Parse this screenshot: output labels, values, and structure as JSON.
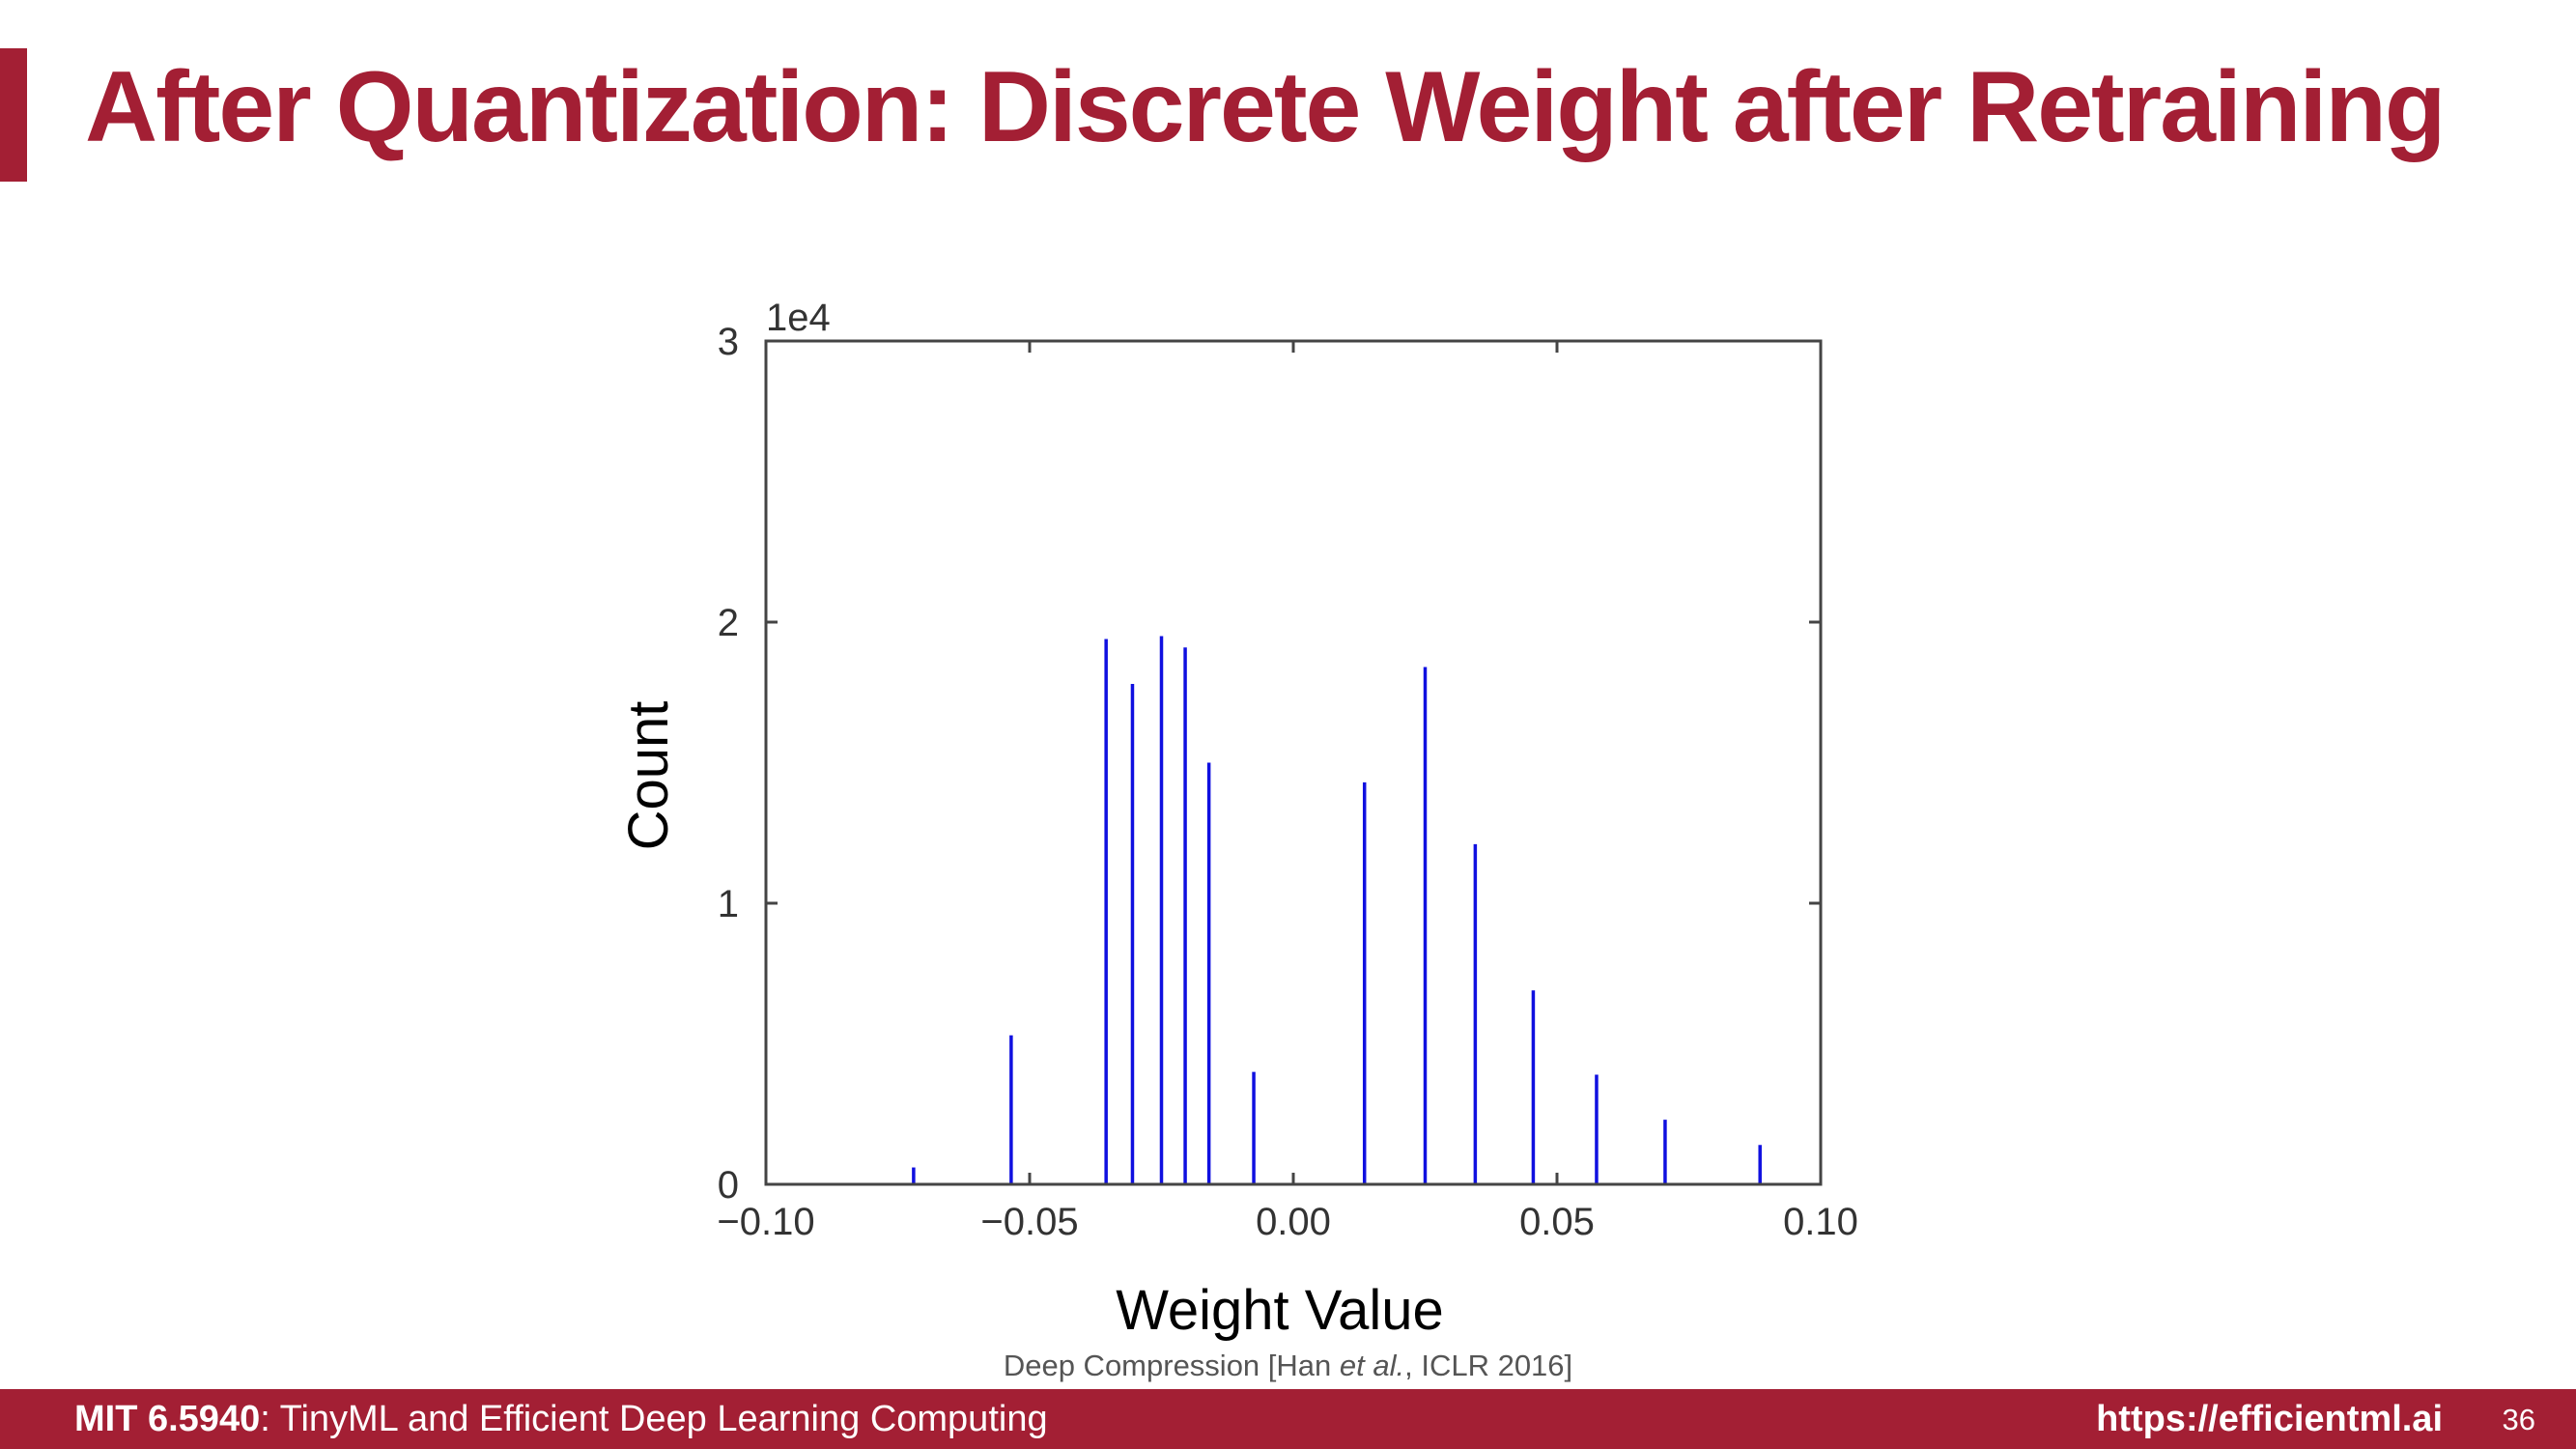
{
  "slide": {
    "title": "After Quantization: Discrete Weight after Retraining",
    "accent_color": "#a31f34",
    "page_number": "36"
  },
  "citation": {
    "prefix": "Deep Compression [Han ",
    "italic": "et al.",
    "suffix": ", ICLR 2016]"
  },
  "footer": {
    "course_code": "MIT 6.5940",
    "course_name": ": TinyML and Efficient Deep Learning Computing",
    "url": "https://efficientml.ai"
  },
  "chart_data": {
    "type": "bar",
    "xlabel": "Weight Value",
    "ylabel": "Count",
    "y_scale_label": "1e4",
    "xlim": [
      -0.1,
      0.1
    ],
    "ylim": [
      0,
      30000
    ],
    "x_ticks": [
      -0.1,
      -0.05,
      0.0,
      0.05,
      0.1
    ],
    "x_tick_labels": [
      "−0.10",
      "−0.05",
      "0.00",
      "0.05",
      "0.10"
    ],
    "y_ticks": [
      0,
      10000,
      20000,
      30000
    ],
    "y_tick_labels": [
      "0",
      "1",
      "2",
      "3"
    ],
    "bar_color": "#1010e0",
    "grid": false,
    "points": [
      {
        "x": -0.072,
        "y": 600
      },
      {
        "x": -0.0535,
        "y": 5300
      },
      {
        "x": -0.0355,
        "y": 19400
      },
      {
        "x": -0.0305,
        "y": 17800
      },
      {
        "x": -0.025,
        "y": 19500
      },
      {
        "x": -0.0205,
        "y": 19100
      },
      {
        "x": -0.016,
        "y": 15000
      },
      {
        "x": -0.0075,
        "y": 4000
      },
      {
        "x": 0.0135,
        "y": 14300
      },
      {
        "x": 0.025,
        "y": 18400
      },
      {
        "x": 0.0345,
        "y": 12100
      },
      {
        "x": 0.0455,
        "y": 6900
      },
      {
        "x": 0.0575,
        "y": 3900
      },
      {
        "x": 0.0705,
        "y": 2300
      },
      {
        "x": 0.0885,
        "y": 1400
      }
    ]
  }
}
